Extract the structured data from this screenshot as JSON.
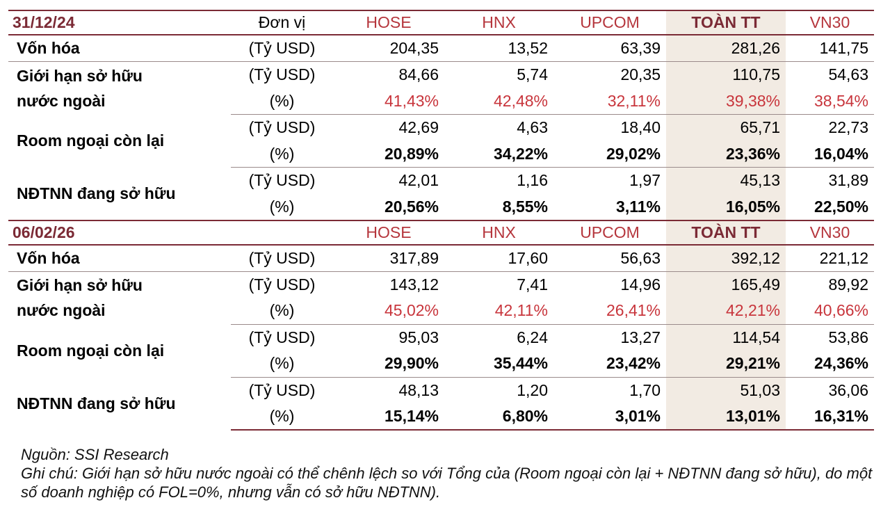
{
  "columns": {
    "unit": "Đơn vị",
    "hose": "HOSE",
    "hnx": "HNX",
    "upcom": "UPCOM",
    "total": "TOÀN TT",
    "vn30": "VN30"
  },
  "units": {
    "usd": "(Tỷ USD)",
    "pct": "(%)"
  },
  "labels": {
    "cap": "Vốn hóa",
    "limit": "Giới hạn sở hữu nước ngoài",
    "room": "Room ngoại còn lại",
    "owned": "NĐTNN đang sở hữu"
  },
  "sections": [
    {
      "date": "31/12/24",
      "cap_usd": [
        "204,35",
        "13,52",
        "63,39",
        "281,26",
        "141,75"
      ],
      "limit_usd": [
        "84,66",
        "5,74",
        "20,35",
        "110,75",
        "54,63"
      ],
      "limit_pct": [
        "41,43%",
        "42,48%",
        "32,11%",
        "39,38%",
        "38,54%"
      ],
      "room_usd": [
        "42,69",
        "4,63",
        "18,40",
        "65,71",
        "22,73"
      ],
      "room_pct": [
        "20,89%",
        "34,22%",
        "29,02%",
        "23,36%",
        "16,04%"
      ],
      "owned_usd": [
        "42,01",
        "1,16",
        "1,97",
        "45,13",
        "31,89"
      ],
      "owned_pct": [
        "20,56%",
        "8,55%",
        "3,11%",
        "16,05%",
        "22,50%"
      ]
    },
    {
      "date": "06/02/26",
      "cap_usd": [
        "317,89",
        "17,60",
        "56,63",
        "392,12",
        "221,12"
      ],
      "limit_usd": [
        "143,12",
        "7,41",
        "14,96",
        "165,49",
        "89,92"
      ],
      "limit_pct": [
        "45,02%",
        "42,11%",
        "26,41%",
        "42,21%",
        "40,66%"
      ],
      "room_usd": [
        "95,03",
        "6,24",
        "13,27",
        "114,54",
        "53,86"
      ],
      "room_pct": [
        "29,90%",
        "35,44%",
        "23,42%",
        "29,21%",
        "24,36%"
      ],
      "owned_usd": [
        "48,13",
        "1,20",
        "1,70",
        "51,03",
        "36,06"
      ],
      "owned_pct": [
        "15,14%",
        "6,80%",
        "3,01%",
        "13,01%",
        "16,31%"
      ]
    }
  ],
  "notes": {
    "source": "Nguồn: SSI Research",
    "note": "Ghi chú: Giới hạn sở hữu nước ngoài có thể chênh lệch so với Tổng của (Room ngoại còn lại + NĐTNN đang sở hữu), do một số doanh nghiệp có FOL=0%, nhưng vẫn có sở hữu NĐTNN)."
  },
  "colors": {
    "accent": "#7b2a35",
    "red": "#c8353c",
    "highlight": "#f2ebe3"
  }
}
